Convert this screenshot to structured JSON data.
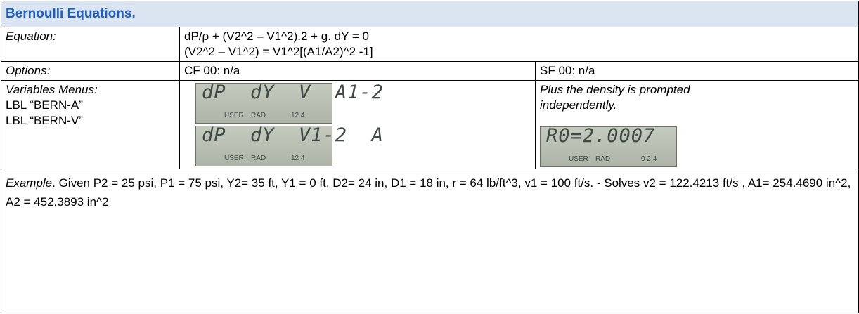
{
  "header": {
    "title": "Bernoulli Equations."
  },
  "equation": {
    "label": "Equation:",
    "lines": [
      "dP/ρ + (V2^2 – V1^2).2 + g. dY = 0",
      "(V2^2 – V1^2) = V1^2[(A1/A2)^2 -1]"
    ]
  },
  "options": {
    "label": "Options:",
    "clear": "CF 00: n/a",
    "set": "SF 00: n/a"
  },
  "variables": {
    "label": "Variables Menus:",
    "programs": [
      "LBL “BERN-A”",
      "LBL “BERN-V”"
    ],
    "displays": [
      {
        "main": "dP  dY  V  A1-2",
        "annunciators": [
          "USER",
          "RAD",
          "12 4"
        ]
      },
      {
        "main": "dP  dY  V1-2  A",
        "annunciators": [
          "USER",
          "RAD",
          "12 4"
        ]
      }
    ],
    "note": "Plus the density is prompted independently.",
    "prompt": {
      "main": "R0=2.0007",
      "annunciators": [
        "USER",
        "RAD",
        "0 2 4"
      ]
    }
  },
  "example": {
    "label": "Example",
    "text": ". Given  P2 = 25 psi, P1 = 75 psi, Y2= 35 ft, Y1 = 0 ft, D2= 24 in, D1 = 18 in, r = 64 lb/ft^3, v1 = 100 ft/s. - Solves  v2 = 122.4213 ft/s , A1= 254.4690 in^2, A2 = 452.3893 in^2"
  }
}
